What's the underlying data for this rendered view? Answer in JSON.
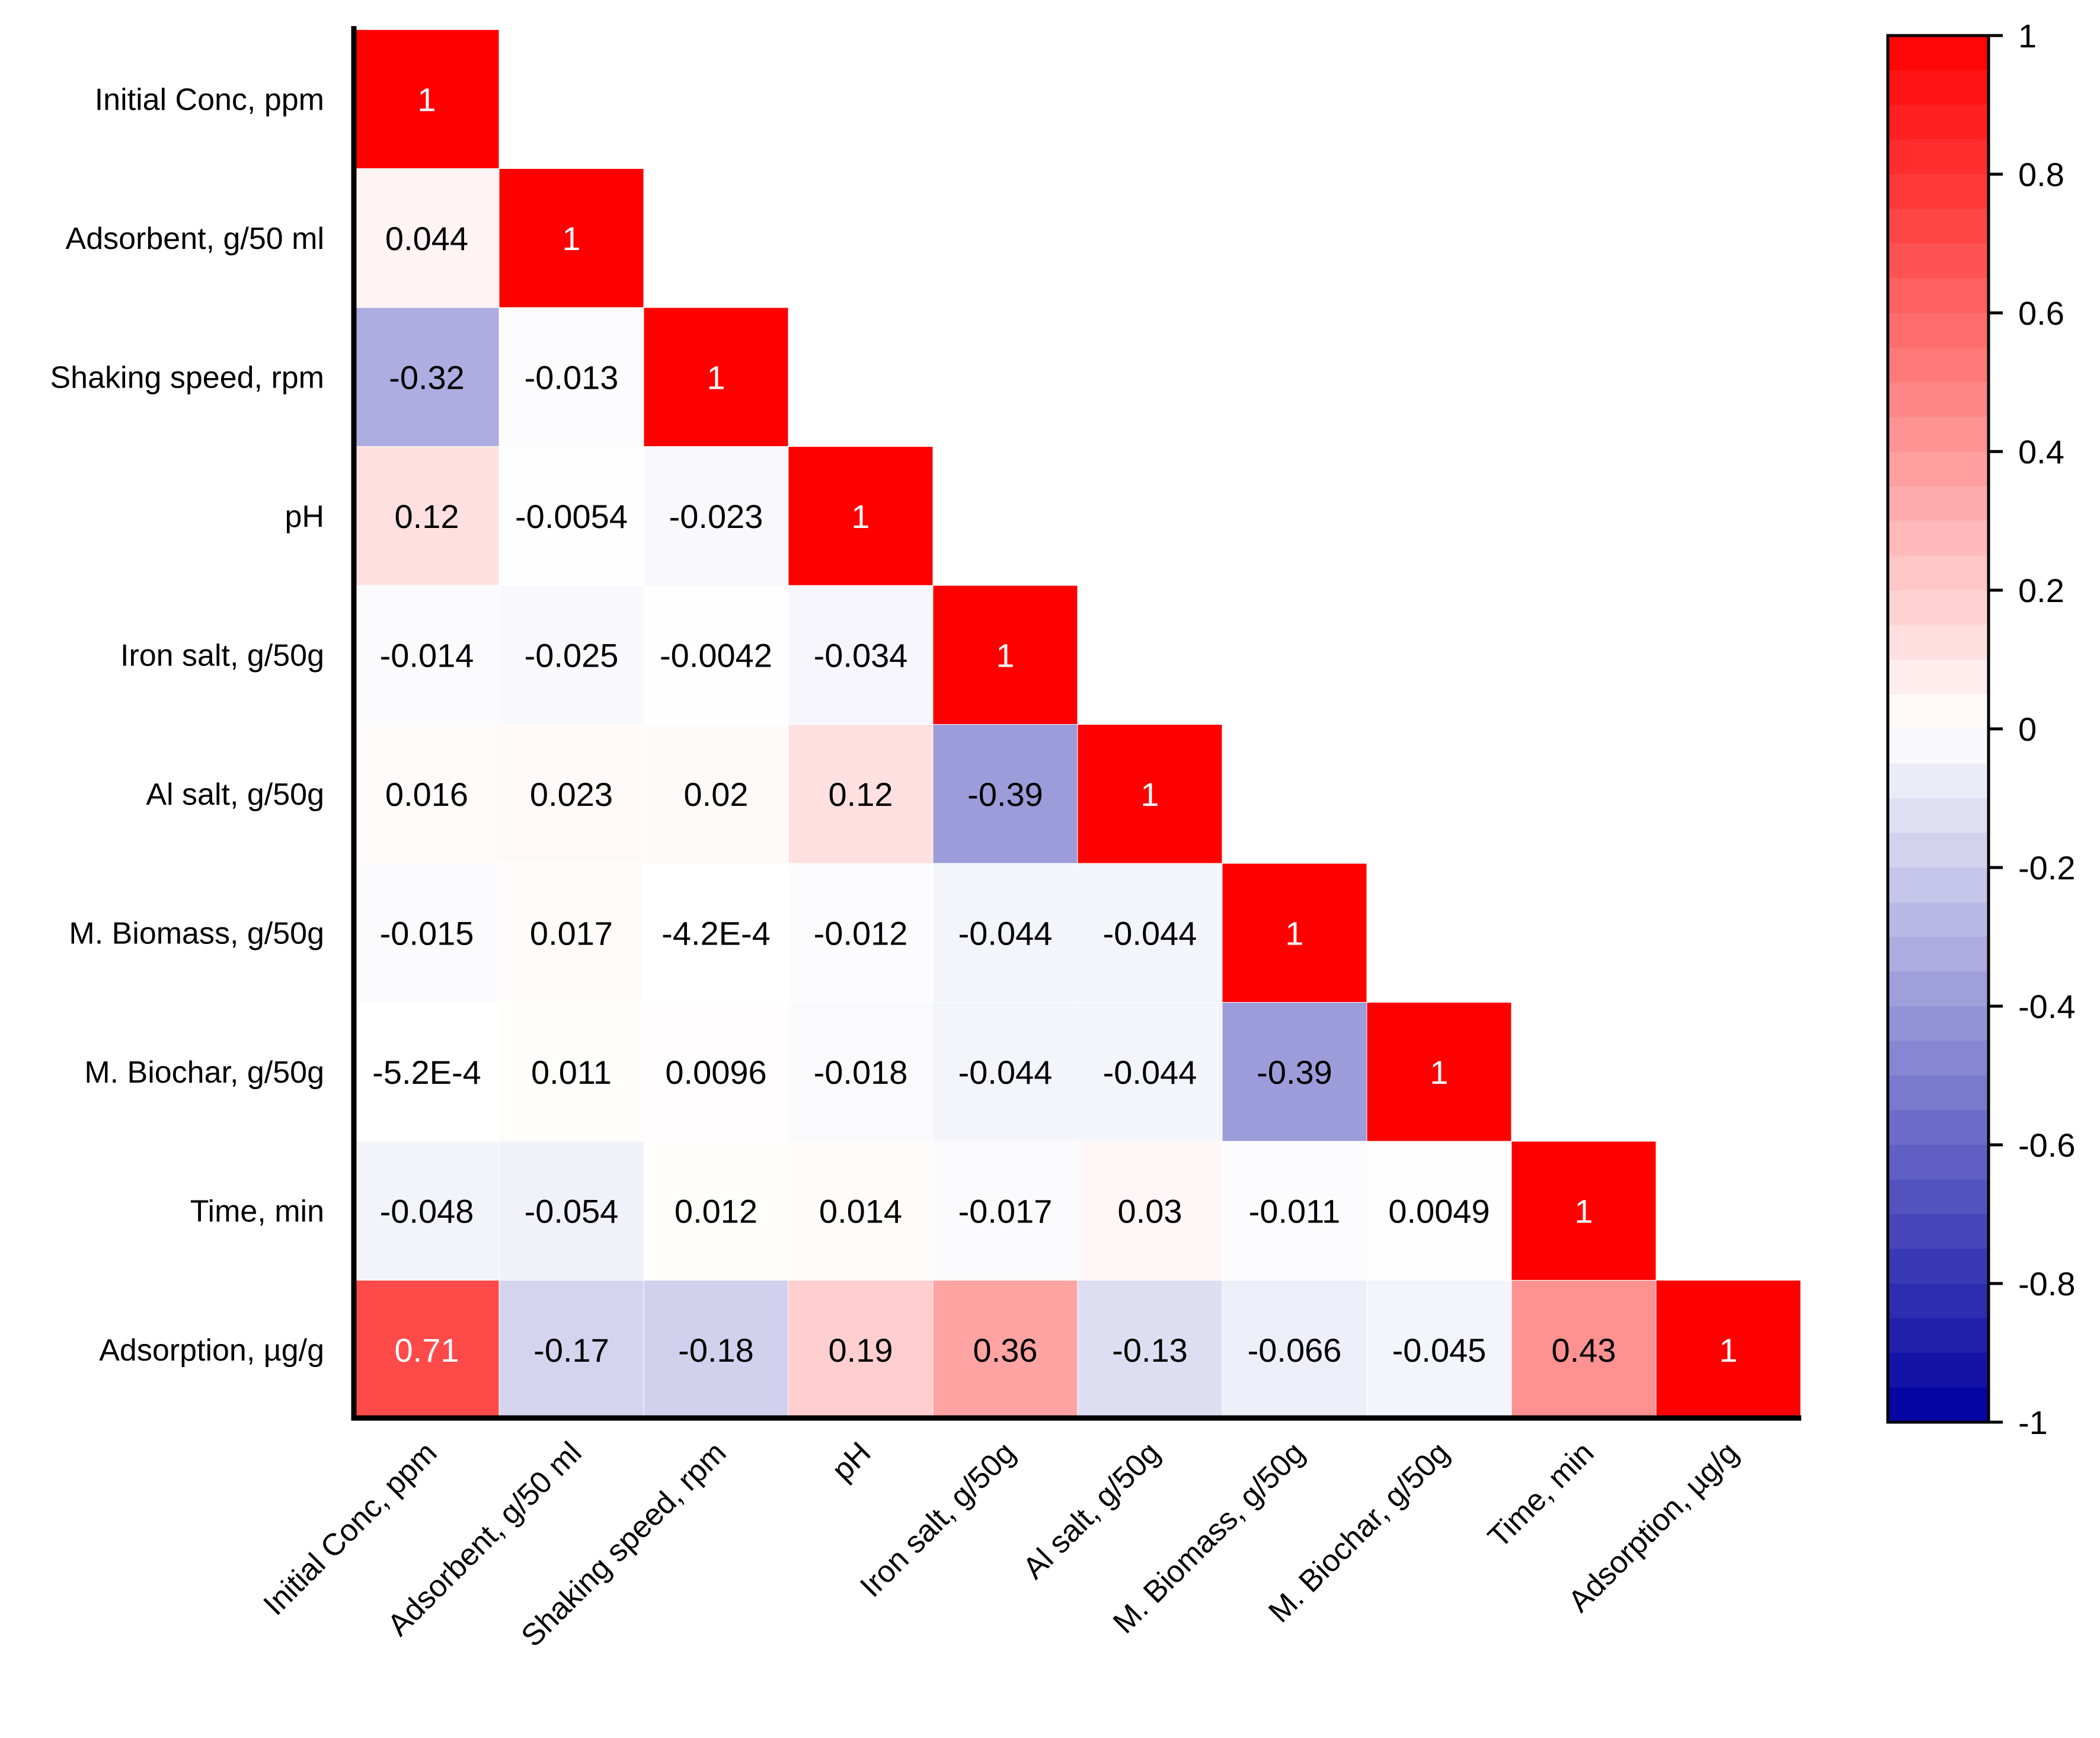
{
  "chart_data": {
    "type": "heatmap",
    "title": "",
    "variables": [
      "Initial Conc, ppm",
      "Adsorbent, g/50 ml",
      "Shaking speed, rpm",
      "pH",
      "Iron salt, g/50g",
      "Al salt, g/50g",
      "M. Biomass, g/50g",
      "M. Biochar, g/50g",
      "Time, min",
      "Adsorption, µg/g"
    ],
    "matrix_lower_triangle": [
      [
        1
      ],
      [
        0.044,
        1
      ],
      [
        -0.32,
        -0.013,
        1
      ],
      [
        0.12,
        -0.0054,
        -0.023,
        1
      ],
      [
        -0.014,
        -0.025,
        -0.0042,
        -0.034,
        1
      ],
      [
        0.016,
        0.023,
        0.02,
        0.12,
        -0.39,
        1
      ],
      [
        -0.015,
        0.017,
        -0.00042,
        -0.012,
        -0.044,
        -0.044,
        1
      ],
      [
        -0.00052,
        0.011,
        0.0096,
        -0.018,
        -0.044,
        -0.044,
        -0.39,
        1
      ],
      [
        -0.048,
        -0.054,
        0.012,
        0.014,
        -0.017,
        0.03,
        -0.011,
        0.0049,
        1
      ],
      [
        0.71,
        -0.17,
        -0.18,
        0.19,
        0.36,
        -0.13,
        -0.066,
        -0.045,
        0.43,
        1
      ]
    ],
    "cell_labels": [
      [
        "1"
      ],
      [
        "0.044",
        "1"
      ],
      [
        "-0.32",
        "-0.013",
        "1"
      ],
      [
        "0.12",
        "-0.0054",
        "-0.023",
        "1"
      ],
      [
        "-0.014",
        "-0.025",
        "-0.0042",
        "-0.034",
        "1"
      ],
      [
        "0.016",
        "0.023",
        "0.02",
        "0.12",
        "-0.39",
        "1"
      ],
      [
        "-0.015",
        "0.017",
        "-4.2E-4",
        "-0.012",
        "-0.044",
        "-0.044",
        "1"
      ],
      [
        "-5.2E-4",
        "0.011",
        "0.0096",
        "-0.018",
        "-0.044",
        "-0.044",
        "-0.39",
        "1"
      ],
      [
        "-0.048",
        "-0.054",
        "0.012",
        "0.014",
        "-0.017",
        "0.03",
        "-0.011",
        "0.0049",
        "1"
      ],
      [
        "0.71",
        "-0.17",
        "-0.18",
        "0.19",
        "0.36",
        "-0.13",
        "-0.066",
        "-0.045",
        "0.43",
        "1"
      ]
    ],
    "colorbar": {
      "range": [
        -1,
        1
      ],
      "ticks": [
        1,
        0.8,
        0.6,
        0.4,
        0.2,
        0,
        -0.2,
        -0.4,
        -0.6,
        -0.8,
        -1
      ],
      "tick_labels": [
        "1",
        "0.8",
        "0.6",
        "0.4",
        "0.2",
        "0",
        "-0.2",
        "-0.4",
        "-0.6",
        "-0.8",
        "-1"
      ],
      "colors": {
        "negative": "#0000a0",
        "zero": "#ffffff",
        "positive": "#ff0000"
      }
    },
    "label_colors": {
      "dark_cell": "#ffffff",
      "light_cell": "#000000"
    }
  }
}
